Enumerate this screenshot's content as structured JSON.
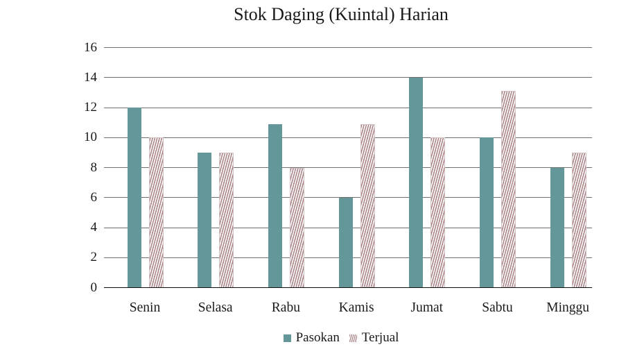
{
  "title": "Stok Daging (Kuintal) Harian",
  "chart_data": {
    "type": "bar",
    "title": "Stok Daging (Kuintal) Harian",
    "categories": [
      "Senin",
      "Selasa",
      "Rabu",
      "Kamis",
      "Jumat",
      "Sabtu",
      "Minggu"
    ],
    "series": [
      {
        "name": "Pasokan",
        "style": "solid",
        "color": "#649799",
        "values": [
          12,
          9,
          10.9,
          6,
          14,
          10,
          8
        ]
      },
      {
        "name": "Terjual",
        "style": "striped",
        "color": "#ac8689",
        "values": [
          10,
          9,
          8,
          10.9,
          10,
          13.1,
          9
        ]
      }
    ],
    "xlabel": "",
    "ylabel": "",
    "ylim": [
      0,
      16
    ],
    "yticks": [
      0,
      2,
      4,
      6,
      8,
      10,
      12,
      14,
      16
    ],
    "grid": true,
    "grid_axis": "y",
    "legend_position": "bottom-center"
  },
  "colors": {
    "pasokan_teal": "#649799",
    "terjual_rose": "#ac8689",
    "gridline_gray": "#6e6e6e",
    "axis_black": "#0d0d0d",
    "text": "#1a1a1a",
    "background": "#ffffff"
  }
}
